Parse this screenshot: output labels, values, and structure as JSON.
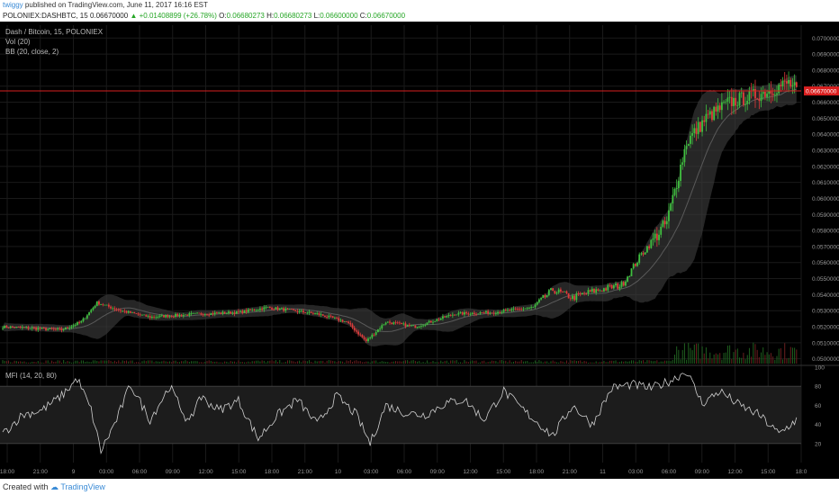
{
  "publish": {
    "user": "twiggy",
    "text": "published on TradingView.com, June 11, 2017 16:16 EST"
  },
  "symbol_bar": {
    "symbol": "POLONIEX:DASHBTC, 15",
    "price": "0.06670000",
    "change": "+0.01408899 (+26.78%)",
    "open_label": "O:",
    "open": "0.06680273",
    "high_label": "H:",
    "high": "0.06680273",
    "low_label": "L:",
    "low": "0.06600000",
    "close_label": "C:",
    "close": "0.06670000"
  },
  "legend": {
    "title": "Dash / Bitcoin, 15, POLONIEX",
    "vol": "Vol (20)",
    "bb": "BB (20, close, 2)",
    "mfi": "MFI (14, 20, 80)"
  },
  "footer": {
    "created": "Created with",
    "brand": "TradingView"
  },
  "colors": {
    "up": "#3fbf3f",
    "down": "#e03b3b",
    "price_line": "#d91f1f",
    "band": "#3a3a3a",
    "mfi": "#cfcfcf"
  },
  "chart_data": {
    "type": "candlestick",
    "price_axis": {
      "ticks": [
        "0.05000000",
        "0.05100000",
        "0.05200000",
        "0.05300000",
        "0.05400000",
        "0.05500000",
        "0.05600000",
        "0.05700000",
        "0.05800000",
        "0.05900000",
        "0.06000000",
        "0.06100000",
        "0.06200000",
        "0.06300000",
        "0.06400000",
        "0.06500000",
        "0.06600000",
        "0.06700000",
        "0.06800000",
        "0.06900000",
        "0.07000000"
      ],
      "ylim": [
        0.0497,
        0.0708
      ],
      "last_price_label": "0.06670000",
      "last_price": 0.0667
    },
    "time_axis": {
      "labels": [
        "18:00",
        "21:00",
        "9",
        "03:00",
        "06:00",
        "09:00",
        "12:00",
        "15:00",
        "18:00",
        "21:00",
        "10",
        "03:00",
        "06:00",
        "09:00",
        "12:00",
        "15:00",
        "18:00",
        "21:00",
        "11",
        "03:00",
        "06:00",
        "09:00",
        "12:00",
        "15:00",
        "18:0"
      ]
    },
    "mfi_axis": {
      "ticks": [
        "100",
        "80",
        "60",
        "40",
        "20"
      ],
      "ylim": [
        0,
        100
      ],
      "band": [
        20,
        80
      ]
    },
    "price_keypoints": [
      [
        0,
        0.052
      ],
      [
        30,
        0.0518
      ],
      [
        40,
        0.0523
      ],
      [
        48,
        0.0535
      ],
      [
        60,
        0.053
      ],
      [
        75,
        0.0526
      ],
      [
        100,
        0.0528
      ],
      [
        120,
        0.0529
      ],
      [
        135,
        0.0532
      ],
      [
        160,
        0.0528
      ],
      [
        175,
        0.0523
      ],
      [
        185,
        0.0511
      ],
      [
        195,
        0.0523
      ],
      [
        210,
        0.052
      ],
      [
        230,
        0.0528
      ],
      [
        250,
        0.0529
      ],
      [
        270,
        0.0532
      ],
      [
        280,
        0.0543
      ],
      [
        290,
        0.0538
      ],
      [
        300,
        0.0542
      ],
      [
        315,
        0.0546
      ],
      [
        325,
        0.0565
      ],
      [
        338,
        0.0585
      ],
      [
        348,
        0.0635
      ],
      [
        358,
        0.065
      ],
      [
        370,
        0.066
      ],
      [
        385,
        0.0665
      ],
      [
        400,
        0.0672
      ],
      [
        404,
        0.0667
      ]
    ],
    "mfi_keypoints": [
      [
        0,
        30
      ],
      [
        10,
        50
      ],
      [
        20,
        55
      ],
      [
        30,
        70
      ],
      [
        38,
        88
      ],
      [
        45,
        55
      ],
      [
        50,
        12
      ],
      [
        58,
        45
      ],
      [
        65,
        82
      ],
      [
        75,
        45
      ],
      [
        85,
        80
      ],
      [
        95,
        40
      ],
      [
        100,
        70
      ],
      [
        110,
        55
      ],
      [
        120,
        65
      ],
      [
        130,
        25
      ],
      [
        140,
        50
      ],
      [
        150,
        66
      ],
      [
        160,
        40
      ],
      [
        170,
        70
      ],
      [
        180,
        50
      ],
      [
        187,
        20
      ],
      [
        195,
        60
      ],
      [
        205,
        52
      ],
      [
        215,
        50
      ],
      [
        225,
        62
      ],
      [
        235,
        66
      ],
      [
        245,
        45
      ],
      [
        255,
        75
      ],
      [
        265,
        55
      ],
      [
        280,
        28
      ],
      [
        290,
        60
      ],
      [
        300,
        40
      ],
      [
        310,
        78
      ],
      [
        320,
        82
      ],
      [
        330,
        78
      ],
      [
        340,
        86
      ],
      [
        348,
        96
      ],
      [
        356,
        62
      ],
      [
        365,
        75
      ],
      [
        375,
        60
      ],
      [
        385,
        50
      ],
      [
        395,
        30
      ],
      [
        404,
        45
      ]
    ]
  }
}
